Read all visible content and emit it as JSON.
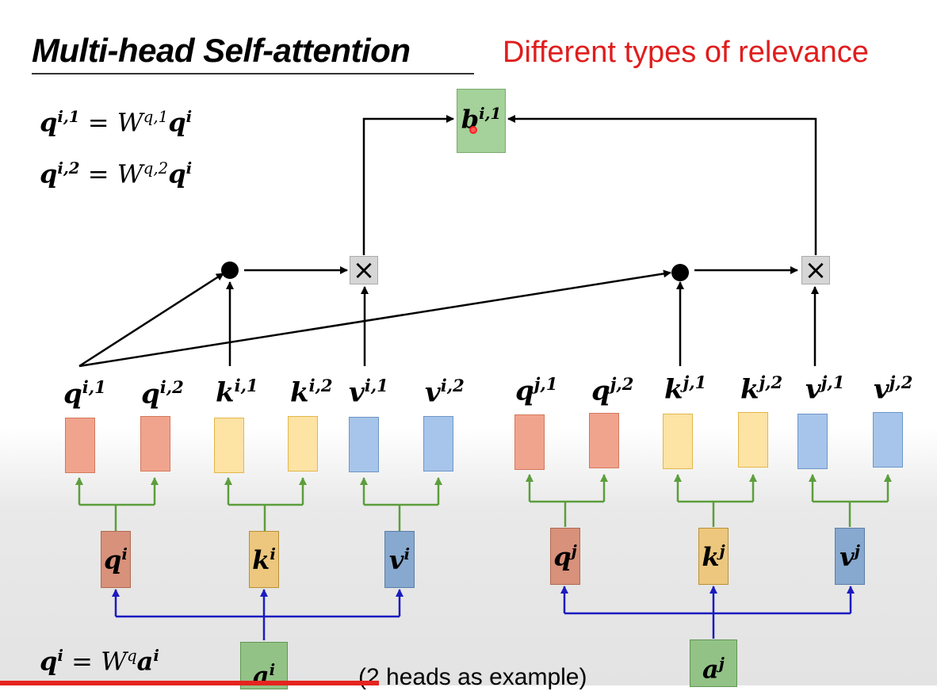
{
  "title": "Multi-head Self-attention",
  "subtitle": "Different types of relevance",
  "formulas": {
    "q1_lhs": "q",
    "q1_sup": "i,1",
    "q1_eq": " = ",
    "q1_w": "W",
    "q1_wsup": "q,1",
    "q1_rhs": "q",
    "q1_rsup": "i",
    "q2_lhs": "q",
    "q2_sup": "i,2",
    "q2_eq": " = ",
    "q2_w": "W",
    "q2_wsup": "q,2",
    "q2_rhs": "q",
    "q2_rsup": "i",
    "qa_lhs": "q",
    "qa_sup": "i",
    "qa_eq": " = ",
    "qa_w": "W",
    "qa_wsup": "q",
    "qa_rhs": "a",
    "qa_rsup": "i"
  },
  "head_output": {
    "base": "b",
    "sup": "i,1"
  },
  "head_labels": [
    {
      "base": "q",
      "sup": "i,1"
    },
    {
      "base": "q",
      "sup": "i,2"
    },
    {
      "base": "k",
      "sup": "i,1"
    },
    {
      "base": "k",
      "sup": "i,2"
    },
    {
      "base": "v",
      "sup": "i,1"
    },
    {
      "base": "v",
      "sup": "i,2"
    },
    {
      "base": "q",
      "sup": "j,1"
    },
    {
      "base": "q",
      "sup": "j,2"
    },
    {
      "base": "k",
      "sup": "j,1"
    },
    {
      "base": "k",
      "sup": "j,2"
    },
    {
      "base": "v",
      "sup": "j,1"
    },
    {
      "base": "v",
      "sup": "j,2"
    }
  ],
  "mid_labels": [
    {
      "base": "q",
      "sup": "i"
    },
    {
      "base": "k",
      "sup": "i"
    },
    {
      "base": "v",
      "sup": "i"
    },
    {
      "base": "q",
      "sup": "j"
    },
    {
      "base": "k",
      "sup": "j"
    },
    {
      "base": "v",
      "sup": "j"
    }
  ],
  "inputs": [
    {
      "base": "a",
      "sup": "i"
    },
    {
      "base": "a",
      "sup": "j"
    }
  ],
  "multiply_symbol": "×",
  "note": "(2 heads as example)",
  "colors": {
    "title_red": "#e01d1d",
    "green_arrow": "#5c9e3c",
    "blue_arrow": "#1b1bbf",
    "progress_red": "#e52420"
  }
}
